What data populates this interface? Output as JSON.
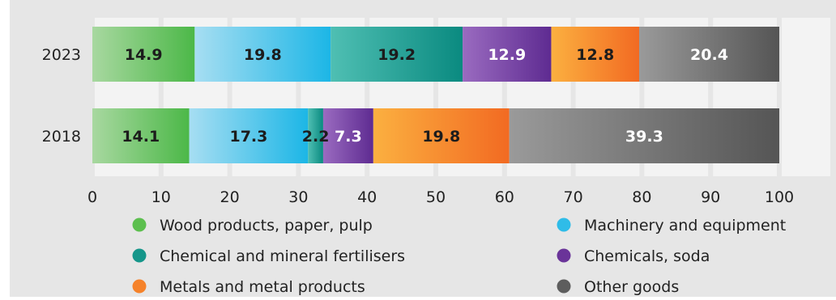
{
  "chart_data": {
    "type": "bar",
    "orientation": "horizontal",
    "stacked": true,
    "categories": [
      "2023",
      "2018"
    ],
    "xlim": [
      0,
      100
    ],
    "xticks": [
      0,
      10,
      20,
      30,
      40,
      50,
      60,
      70,
      80,
      90,
      100
    ],
    "grid": true,
    "legend_position": "bottom",
    "series": [
      {
        "name": "Wood products, paper, pulp",
        "values": [
          14.9,
          14.1
        ],
        "color_start": "#a8d8a0",
        "color_end": "#4cb848",
        "label_color": "#1c1c1c",
        "legend_color": "#5cbf4e"
      },
      {
        "name": "Machinery and equipment",
        "values": [
          19.8,
          17.3
        ],
        "color_start": "#a7def2",
        "color_end": "#1cb6e6",
        "label_color": "#1c1c1c",
        "legend_color": "#2fbce8"
      },
      {
        "name": "Chemical and mineral fertilisers",
        "values": [
          19.2,
          2.2
        ],
        "color_start": "#4fbfb3",
        "color_end": "#0a8a80",
        "label_color": "#1c1c1c",
        "legend_color": "#15968a"
      },
      {
        "name": "Chemicals, soda",
        "values": [
          12.9,
          7.3
        ],
        "color_start": "#9a6bc0",
        "color_end": "#5e2b91",
        "label_color": "#ffffff",
        "legend_color": "#6a3499"
      },
      {
        "name": "Metals and metal products",
        "values": [
          12.8,
          19.8
        ],
        "color_start": "#fbb040",
        "color_end": "#f26a22",
        "label_color": "#1c1c1c",
        "legend_color": "#f5822a"
      },
      {
        "name": "Other goods",
        "values": [
          20.4,
          39.3
        ],
        "color_start": "#9a9a9a",
        "color_end": "#555555",
        "label_color": "#ffffff",
        "legend_color": "#5d5d5d"
      }
    ]
  },
  "colors": {
    "background": "#e6e6e6",
    "gridline": "#f3f3f3",
    "text": "#222222"
  }
}
